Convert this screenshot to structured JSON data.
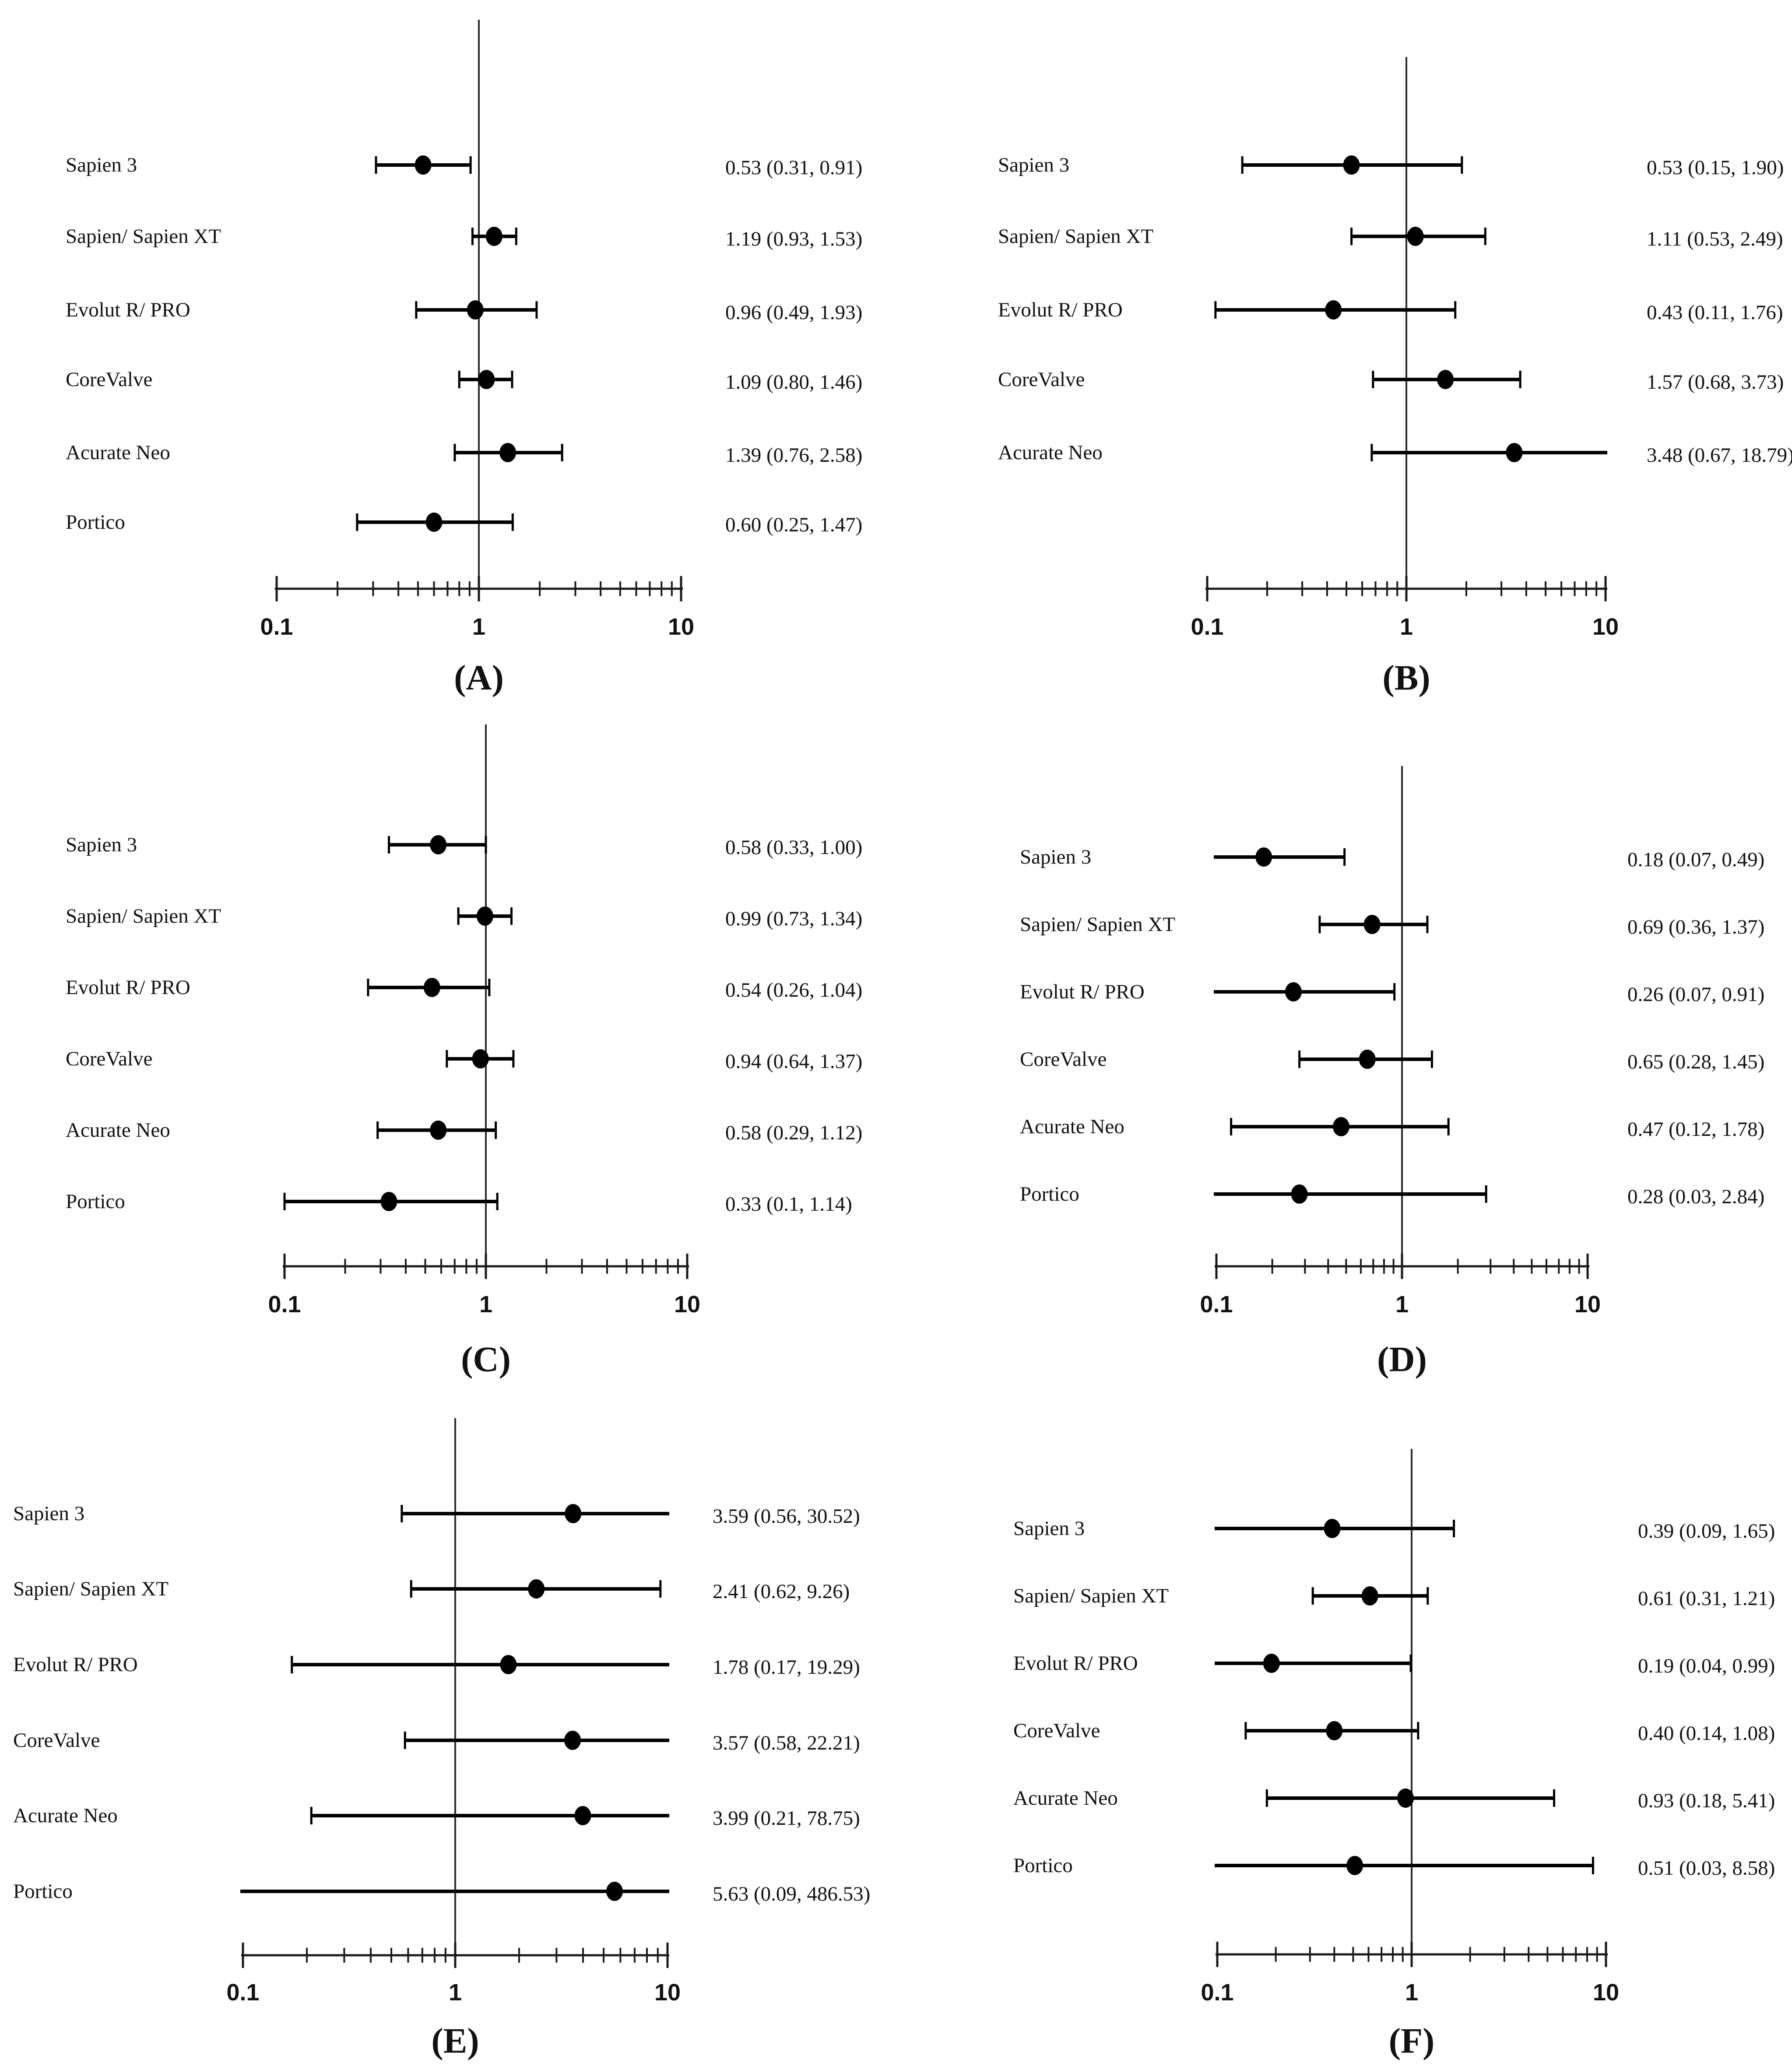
{
  "figure": {
    "kind": "forest-plot-grid",
    "panels_order": [
      "A",
      "B",
      "C",
      "D",
      "E",
      "F"
    ],
    "colors": {
      "default_axis": "#1a1a1a",
      "panel_d_axis": "#a6a6a6",
      "marker": "#000000",
      "text": "#121212"
    }
  },
  "chart_data": [
    {
      "type": "scatter",
      "subtype": "forest",
      "panel_letter": "(A)",
      "scale": "log",
      "xlim": [
        0.1,
        10
      ],
      "xticks": [
        "0.1",
        "1",
        "10"
      ],
      "ref_line": 1,
      "grid": false,
      "rows": [
        {
          "label": "Sapien 3",
          "est": 0.53,
          "lo": 0.31,
          "hi": 0.91,
          "value_text": "0.53 (0.31, 0.91)"
        },
        {
          "label": "Sapien/ Sapien XT",
          "est": 1.19,
          "lo": 0.93,
          "hi": 1.53,
          "value_text": "1.19 (0.93, 1.53)"
        },
        {
          "label": "Evolut R/ PRO",
          "est": 0.96,
          "lo": 0.49,
          "hi": 1.93,
          "value_text": "0.96 (0.49, 1.93)"
        },
        {
          "label": "CoreValve",
          "est": 1.09,
          "lo": 0.8,
          "hi": 1.46,
          "value_text": "1.09 (0.80, 1.46)"
        },
        {
          "label": "Acurate Neo",
          "est": 1.39,
          "lo": 0.76,
          "hi": 2.58,
          "value_text": "1.39 (0.76, 2.58)"
        },
        {
          "label": "Portico",
          "est": 0.6,
          "lo": 0.25,
          "hi": 1.47,
          "value_text": "0.60 (0.25, 1.47)"
        }
      ]
    },
    {
      "type": "scatter",
      "subtype": "forest",
      "panel_letter": "(B)",
      "scale": "log",
      "xlim": [
        0.1,
        10
      ],
      "xticks": [
        "0.1",
        "1",
        "10"
      ],
      "ref_line": 1,
      "grid": false,
      "rows": [
        {
          "label": "Sapien 3",
          "est": 0.53,
          "lo": 0.15,
          "hi": 1.9,
          "value_text": "0.53 (0.15, 1.90)"
        },
        {
          "label": "Sapien/ Sapien XT",
          "est": 1.11,
          "lo": 0.53,
          "hi": 2.49,
          "value_text": "1.11 (0.53, 2.49)"
        },
        {
          "label": "Evolut R/ PRO",
          "est": 0.43,
          "lo": 0.11,
          "hi": 1.76,
          "value_text": "0.43 (0.11, 1.76)"
        },
        {
          "label": "CoreValve",
          "est": 1.57,
          "lo": 0.68,
          "hi": 3.73,
          "value_text": "1.57 (0.68, 3.73)"
        },
        {
          "label": "Acurate Neo",
          "est": 3.48,
          "lo": 0.67,
          "hi": 18.79,
          "value_text": "3.48 (0.67, 18.79)"
        }
      ]
    },
    {
      "type": "scatter",
      "subtype": "forest",
      "panel_letter": "(C)",
      "scale": "log",
      "xlim": [
        0.1,
        10
      ],
      "xticks": [
        "0.1",
        "1",
        "10"
      ],
      "ref_line": 1,
      "grid": false,
      "rows": [
        {
          "label": "Sapien 3",
          "est": 0.58,
          "lo": 0.33,
          "hi": 1.0,
          "value_text": "0.58 (0.33, 1.00)"
        },
        {
          "label": "Sapien/ Sapien XT",
          "est": 0.99,
          "lo": 0.73,
          "hi": 1.34,
          "value_text": "0.99 (0.73, 1.34)"
        },
        {
          "label": "Evolut R/ PRO",
          "est": 0.54,
          "lo": 0.26,
          "hi": 1.04,
          "value_text": "0.54 (0.26, 1.04)"
        },
        {
          "label": "CoreValve",
          "est": 0.94,
          "lo": 0.64,
          "hi": 1.37,
          "value_text": "0.94 (0.64, 1.37)"
        },
        {
          "label": "Acurate Neo",
          "est": 0.58,
          "lo": 0.29,
          "hi": 1.12,
          "value_text": "0.58 (0.29, 1.12)"
        },
        {
          "label": "Portico",
          "est": 0.33,
          "lo": 0.1,
          "hi": 1.14,
          "value_text": "0.33 (0.1, 1.14)"
        }
      ]
    },
    {
      "type": "scatter",
      "subtype": "forest",
      "panel_letter": "(D)",
      "scale": "log",
      "xlim": [
        0.1,
        10
      ],
      "xticks": [
        "0.1",
        "1",
        "10"
      ],
      "ref_line": 1,
      "grid": false,
      "axis_color": "#a6a6a6",
      "rows": [
        {
          "label": "Sapien 3",
          "est": 0.18,
          "lo": 0.07,
          "hi": 0.49,
          "value_text": "0.18 (0.07, 0.49)"
        },
        {
          "label": "Sapien/ Sapien XT",
          "est": 0.69,
          "lo": 0.36,
          "hi": 1.37,
          "value_text": "0.69 (0.36, 1.37)"
        },
        {
          "label": "Evolut R/ PRO",
          "est": 0.26,
          "lo": 0.07,
          "hi": 0.91,
          "value_text": "0.26 (0.07, 0.91)"
        },
        {
          "label": "CoreValve",
          "est": 0.65,
          "lo": 0.28,
          "hi": 1.45,
          "value_text": "0.65 (0.28, 1.45)"
        },
        {
          "label": "Acurate Neo",
          "est": 0.47,
          "lo": 0.12,
          "hi": 1.78,
          "value_text": "0.47 (0.12, 1.78)"
        },
        {
          "label": "Portico",
          "est": 0.28,
          "lo": 0.03,
          "hi": 2.84,
          "value_text": "0.28 (0.03, 2.84)"
        }
      ]
    },
    {
      "type": "scatter",
      "subtype": "forest",
      "panel_letter": "(E)",
      "scale": "log",
      "xlim": [
        0.1,
        10
      ],
      "xticks": [
        "0.1",
        "1",
        "10"
      ],
      "ref_line": 1,
      "grid": false,
      "rows": [
        {
          "label": "Sapien 3",
          "est": 3.59,
          "lo": 0.56,
          "hi": 30.52,
          "value_text": "3.59 (0.56, 30.52)"
        },
        {
          "label": "Sapien/ Sapien XT",
          "est": 2.41,
          "lo": 0.62,
          "hi": 9.26,
          "value_text": "2.41 (0.62, 9.26)"
        },
        {
          "label": "Evolut R/ PRO",
          "est": 1.78,
          "lo": 0.17,
          "hi": 19.29,
          "value_text": "1.78 (0.17, 19.29)"
        },
        {
          "label": "CoreValve",
          "est": 3.57,
          "lo": 0.58,
          "hi": 22.21,
          "value_text": "3.57 (0.58, 22.21)"
        },
        {
          "label": "Acurate Neo",
          "est": 3.99,
          "lo": 0.21,
          "hi": 78.75,
          "value_text": "3.99 (0.21, 78.75)"
        },
        {
          "label": "Portico",
          "est": 5.63,
          "lo": 0.09,
          "hi": 486.53,
          "value_text": "5.63 (0.09, 486.53)"
        }
      ]
    },
    {
      "type": "scatter",
      "subtype": "forest",
      "panel_letter": "(F)",
      "scale": "log",
      "xlim": [
        0.1,
        10
      ],
      "xticks": [
        "0.1",
        "1",
        "10"
      ],
      "ref_line": 1,
      "grid": false,
      "rows": [
        {
          "label": "Sapien 3",
          "est": 0.39,
          "lo": 0.09,
          "hi": 1.65,
          "value_text": "0.39 (0.09, 1.65)"
        },
        {
          "label": "Sapien/ Sapien XT",
          "est": 0.61,
          "lo": 0.31,
          "hi": 1.21,
          "value_text": "0.61 (0.31, 1.21)"
        },
        {
          "label": "Evolut R/ PRO",
          "est": 0.19,
          "lo": 0.04,
          "hi": 0.99,
          "value_text": "0.19 (0.04, 0.99)"
        },
        {
          "label": "CoreValve",
          "est": 0.4,
          "lo": 0.14,
          "hi": 1.08,
          "value_text": "0.40 (0.14, 1.08)"
        },
        {
          "label": "Acurate Neo",
          "est": 0.93,
          "lo": 0.18,
          "hi": 5.41,
          "value_text": "0.93 (0.18, 5.41)"
        },
        {
          "label": "Portico",
          "est": 0.51,
          "lo": 0.03,
          "hi": 8.58,
          "value_text": "0.51 (0.03, 8.58)"
        }
      ]
    }
  ]
}
